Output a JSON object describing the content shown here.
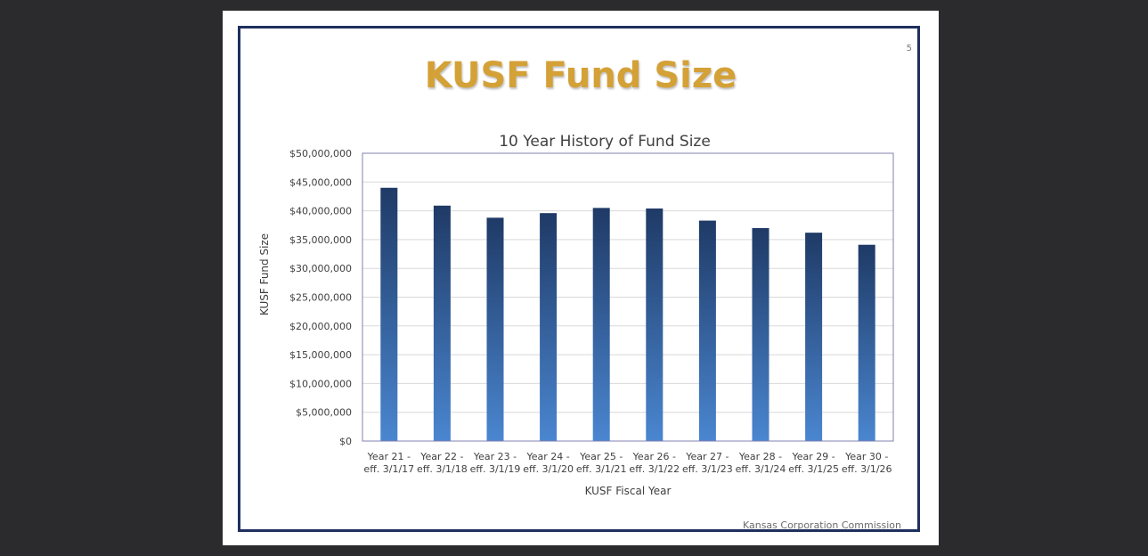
{
  "slide": {
    "title": "KUSF Fund Size",
    "page_number": "5",
    "footer": "Kansas Corporation Commission",
    "colors": {
      "title": "#d4a137",
      "frame": "#1f2f5e",
      "bar_top": "#1f3a66",
      "bar_bottom": "#4a86d0"
    }
  },
  "chart_data": {
    "type": "bar",
    "title": "10 Year History of Fund Size",
    "xlabel": "KUSF Fiscal Year",
    "ylabel": "KUSF Fund Size",
    "categories": [
      [
        "Year 21 -",
        "eff. 3/1/17"
      ],
      [
        "Year 22 -",
        "eff. 3/1/18"
      ],
      [
        "Year 23 -",
        "eff. 3/1/19"
      ],
      [
        "Year 24 -",
        "eff. 3/1/20"
      ],
      [
        "Year 25 -",
        "eff. 3/1/21"
      ],
      [
        "Year 26 -",
        "eff. 3/1/22"
      ],
      [
        "Year 27 -",
        "eff. 3/1/23"
      ],
      [
        "Year 28 -",
        "eff. 3/1/24"
      ],
      [
        "Year 29 -",
        "eff. 3/1/25"
      ],
      [
        "Year 30 -",
        "eff. 3/1/26"
      ]
    ],
    "values": [
      44000000,
      40900000,
      38800000,
      39600000,
      40500000,
      40400000,
      38300000,
      37000000,
      36200000,
      34100000
    ],
    "ylim": [
      0,
      50000000
    ],
    "yticks": [
      {
        "value": 0,
        "label": "$0"
      },
      {
        "value": 5000000,
        "label": "$5,000,000"
      },
      {
        "value": 10000000,
        "label": "$10,000,000"
      },
      {
        "value": 15000000,
        "label": "$15,000,000"
      },
      {
        "value": 20000000,
        "label": "$20,000,000"
      },
      {
        "value": 25000000,
        "label": "$25,000,000"
      },
      {
        "value": 30000000,
        "label": "$30,000,000"
      },
      {
        "value": 35000000,
        "label": "$35,000,000"
      },
      {
        "value": 40000000,
        "label": "$40,000,000"
      },
      {
        "value": 45000000,
        "label": "$45,000,000"
      },
      {
        "value": 50000000,
        "label": "$50,000,000"
      }
    ],
    "grid": true,
    "legend": "none"
  }
}
